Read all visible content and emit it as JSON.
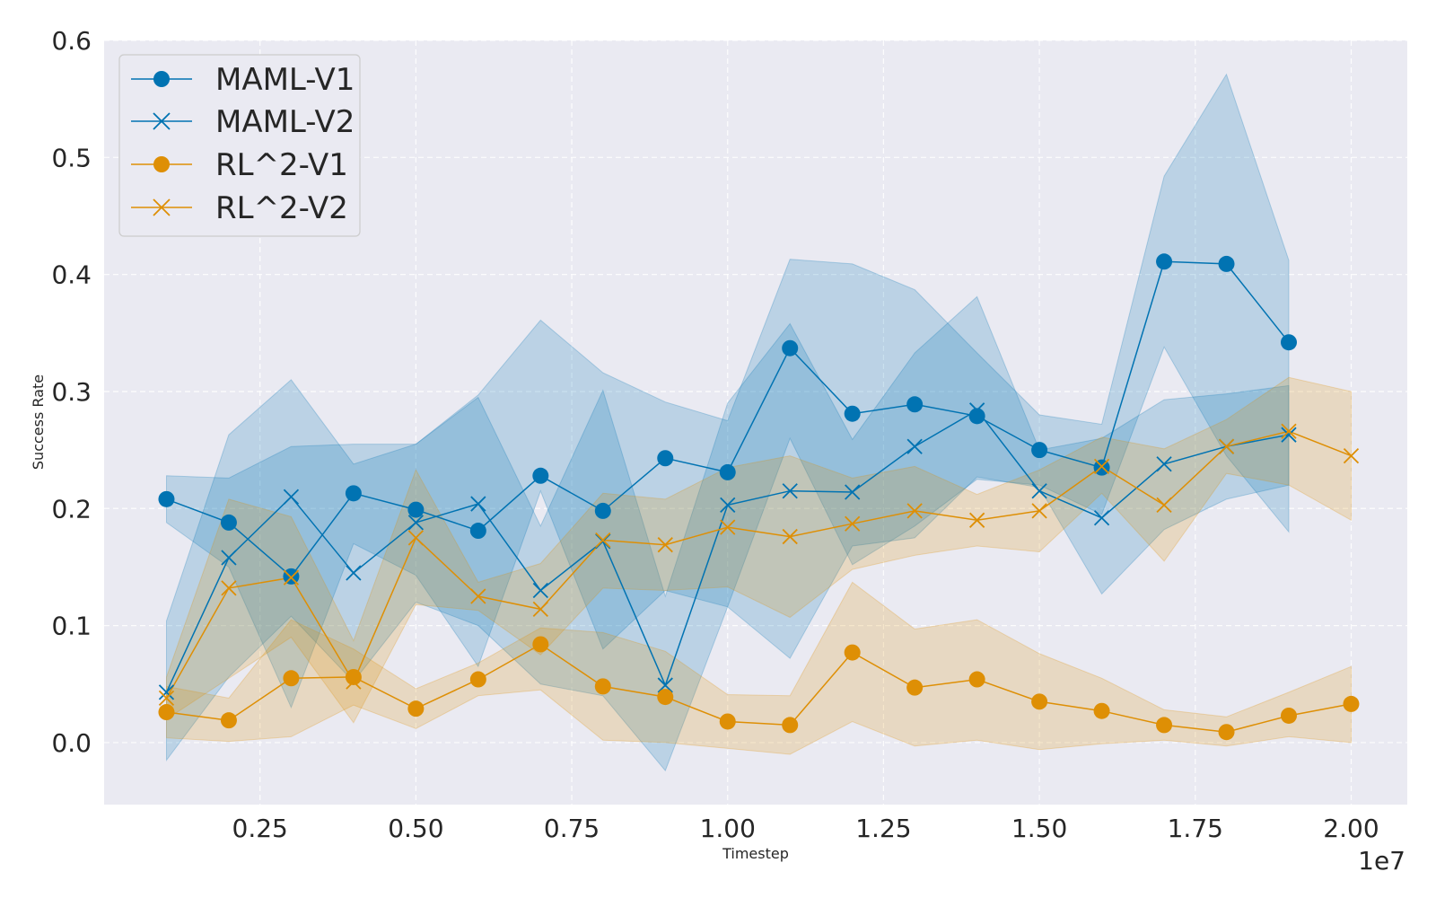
{
  "chart_data": {
    "type": "line",
    "title": "",
    "xlabel": "Timestep",
    "ylabel": "Success Rate",
    "x_offset_label": "1e7",
    "xlim": [
      0.0,
      2.09
    ],
    "ylim": [
      -0.053,
      0.6
    ],
    "xticks": [
      0.25,
      0.5,
      0.75,
      1.0,
      1.25,
      1.5,
      1.75,
      2.0
    ],
    "xtick_labels": [
      "0.25",
      "0.50",
      "0.75",
      "1.00",
      "1.25",
      "1.50",
      "1.75",
      "2.00"
    ],
    "yticks": [
      0.0,
      0.1,
      0.2,
      0.3,
      0.4,
      0.5,
      0.6
    ],
    "ytick_labels": [
      "0.0",
      "0.1",
      "0.2",
      "0.3",
      "0.4",
      "0.5",
      "0.6"
    ],
    "grid": true,
    "legend_position": "top-left",
    "background_color": "#eaeaf2",
    "series": [
      {
        "name": "MAML-V1",
        "color": "#0173b2",
        "marker": "circle",
        "x": [
          0.1,
          0.2,
          0.3,
          0.4,
          0.5,
          0.6,
          0.7,
          0.8,
          0.9,
          1.0,
          1.1,
          1.2,
          1.3,
          1.4,
          1.5,
          1.6,
          1.7,
          1.8,
          1.9
        ],
        "values": [
          0.208,
          0.188,
          0.142,
          0.213,
          0.199,
          0.181,
          0.228,
          0.198,
          0.243,
          0.231,
          0.337,
          0.281,
          0.289,
          0.279,
          0.25,
          0.235,
          0.411,
          0.409,
          0.342
        ],
        "lower": [
          0.188,
          0.15,
          0.03,
          0.17,
          0.143,
          0.065,
          0.215,
          0.08,
          0.13,
          0.116,
          0.26,
          0.152,
          0.185,
          0.225,
          0.22,
          0.195,
          0.338,
          0.245,
          0.18
        ],
        "upper": [
          0.228,
          0.226,
          0.253,
          0.255,
          0.255,
          0.297,
          0.361,
          0.316,
          0.291,
          0.275,
          0.413,
          0.409,
          0.387,
          0.333,
          0.28,
          0.272,
          0.484,
          0.571,
          0.412
        ]
      },
      {
        "name": "MAML-V2",
        "color": "#0173b2",
        "marker": "x",
        "x": [
          0.1,
          0.2,
          0.3,
          0.4,
          0.5,
          0.6,
          0.7,
          0.8,
          0.9,
          1.0,
          1.1,
          1.2,
          1.3,
          1.4,
          1.5,
          1.6,
          1.7,
          1.8,
          1.9
        ],
        "values": [
          0.043,
          0.158,
          0.21,
          0.145,
          0.188,
          0.204,
          0.13,
          0.172,
          0.049,
          0.203,
          0.215,
          0.214,
          0.253,
          0.284,
          0.215,
          0.192,
          0.238,
          0.253,
          0.263
        ],
        "lower": [
          -0.015,
          0.056,
          0.108,
          0.052,
          0.12,
          0.1,
          0.05,
          0.04,
          -0.024,
          0.116,
          0.072,
          0.168,
          0.175,
          0.227,
          0.218,
          0.127,
          0.182,
          0.208,
          0.22
        ],
        "upper": [
          0.104,
          0.263,
          0.31,
          0.238,
          0.255,
          0.295,
          0.185,
          0.301,
          0.125,
          0.29,
          0.358,
          0.259,
          0.333,
          0.381,
          0.25,
          0.26,
          0.293,
          0.298,
          0.305
        ]
      },
      {
        "name": "RL^2-V1",
        "color": "#de8f05",
        "marker": "circle",
        "x": [
          0.1,
          0.2,
          0.3,
          0.4,
          0.5,
          0.6,
          0.7,
          0.8,
          0.9,
          1.0,
          1.1,
          1.2,
          1.3,
          1.4,
          1.5,
          1.6,
          1.7,
          1.8,
          1.9,
          2.0
        ],
        "values": [
          0.026,
          0.019,
          0.055,
          0.056,
          0.029,
          0.054,
          0.084,
          0.048,
          0.039,
          0.018,
          0.015,
          0.077,
          0.047,
          0.054,
          0.035,
          0.027,
          0.015,
          0.009,
          0.023,
          0.033
        ],
        "lower": [
          0.004,
          0.001,
          0.005,
          0.032,
          0.012,
          0.04,
          0.045,
          0.002,
          0.0,
          -0.005,
          -0.01,
          0.018,
          -0.003,
          0.002,
          -0.006,
          -0.001,
          0.002,
          -0.003,
          0.005,
          0.0
        ],
        "upper": [
          0.048,
          0.038,
          0.105,
          0.08,
          0.046,
          0.068,
          0.098,
          0.094,
          0.078,
          0.041,
          0.04,
          0.137,
          0.097,
          0.105,
          0.076,
          0.055,
          0.028,
          0.022,
          0.043,
          0.065
        ]
      },
      {
        "name": "RL^2-V2",
        "color": "#de8f05",
        "marker": "x",
        "x": [
          0.1,
          0.2,
          0.3,
          0.4,
          0.5,
          0.6,
          0.7,
          0.8,
          0.9,
          1.0,
          1.1,
          1.2,
          1.3,
          1.4,
          1.5,
          1.6,
          1.7,
          1.8,
          1.9,
          2.0
        ],
        "values": [
          0.038,
          0.132,
          0.141,
          0.052,
          0.175,
          0.125,
          0.114,
          0.173,
          0.169,
          0.184,
          0.176,
          0.187,
          0.198,
          0.19,
          0.198,
          0.236,
          0.203,
          0.253,
          0.266,
          0.245
        ],
        "lower": [
          0.02,
          0.055,
          0.09,
          0.017,
          0.118,
          0.113,
          0.075,
          0.132,
          0.13,
          0.133,
          0.107,
          0.148,
          0.16,
          0.168,
          0.163,
          0.213,
          0.155,
          0.23,
          0.22,
          0.19
        ],
        "upper": [
          0.056,
          0.208,
          0.193,
          0.087,
          0.233,
          0.137,
          0.153,
          0.213,
          0.208,
          0.235,
          0.245,
          0.226,
          0.236,
          0.212,
          0.233,
          0.261,
          0.251,
          0.276,
          0.312,
          0.3
        ]
      }
    ]
  }
}
